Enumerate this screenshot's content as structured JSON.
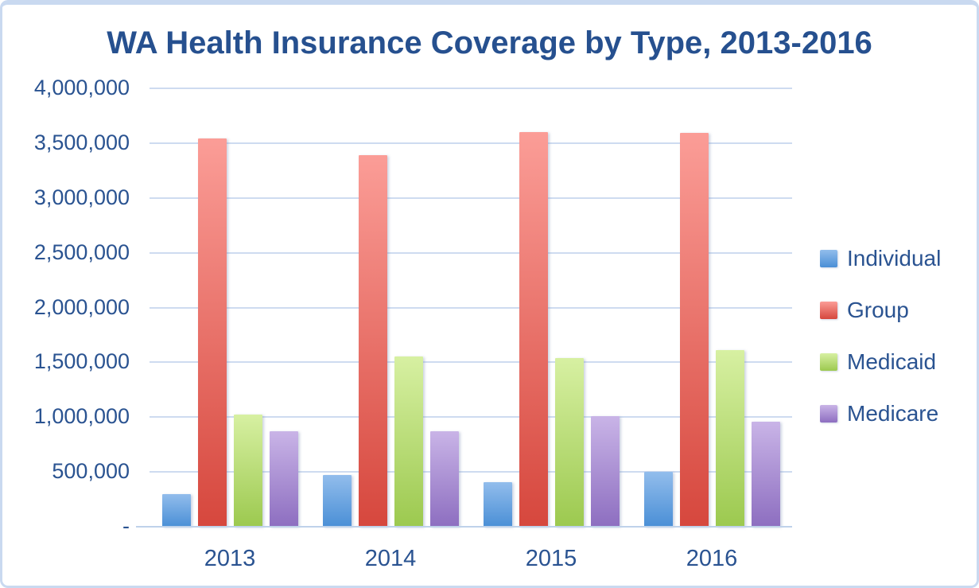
{
  "chart_data": {
    "type": "bar",
    "title": "WA Health Insurance Coverage by Type, 2013-2016",
    "categories": [
      "2013",
      "2014",
      "2015",
      "2016"
    ],
    "series": [
      {
        "name": "Individual",
        "color_top": "#92bdec",
        "color_bottom": "#4a8fd6",
        "values": [
          300000,
          470000,
          410000,
          500000
        ]
      },
      {
        "name": "Group",
        "color_top": "#fb9d97",
        "color_bottom": "#d6473d",
        "values": [
          3540000,
          3390000,
          3600000,
          3590000
        ]
      },
      {
        "name": "Medicaid",
        "color_top": "#d7f0a2",
        "color_bottom": "#9cc94f",
        "values": [
          1020000,
          1550000,
          1540000,
          1610000
        ]
      },
      {
        "name": "Medicare",
        "color_top": "#c9b4e7",
        "color_bottom": "#8d6ec0",
        "values": [
          870000,
          870000,
          1010000,
          960000
        ]
      }
    ],
    "xlabel": "",
    "ylabel": "",
    "ylim": [
      0,
      4000000
    ],
    "y_tick_interval": 500000,
    "y_tick_labels": [
      "-",
      "500,000",
      "1,000,000",
      "1,500,000",
      "2,000,000",
      "2,500,000",
      "3,000,000",
      "3,500,000",
      "4,000,000"
    ],
    "grid": true,
    "legend_position": "right",
    "legend_entries": [
      "Individual",
      "Group",
      "Medicaid",
      "Medicare"
    ]
  },
  "colors": {
    "title_text": "#26508f",
    "axis_text": "#2a5391",
    "gridline": "#cedbf0",
    "baseline": "#bfd2ea",
    "frame_border": "#c9d9f0",
    "background": "#ffffff"
  }
}
